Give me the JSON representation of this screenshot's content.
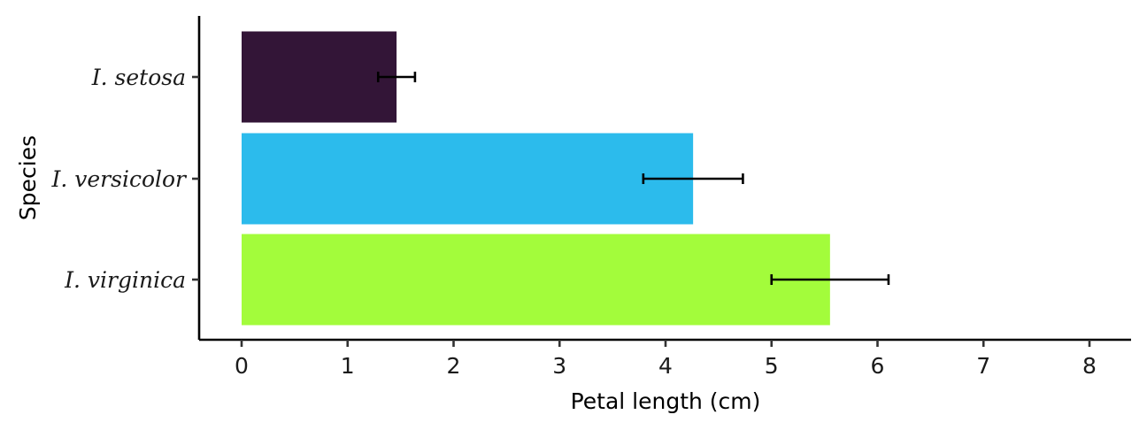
{
  "chart_data": {
    "type": "bar",
    "orientation": "horizontal",
    "categories": [
      "I. setosa",
      "I. versicolor",
      "I. virginica"
    ],
    "values": [
      1.462,
      4.26,
      5.552
    ],
    "errors": [
      0.174,
      0.47,
      0.552
    ],
    "colors": [
      "#331537",
      "#2cbbec",
      "#a3fc3b"
    ],
    "xlabel": "Petal length (cm)",
    "ylabel": "Species",
    "xlim": [
      -0.4,
      8.4
    ],
    "xticks": [
      0,
      1,
      2,
      3,
      4,
      5,
      6,
      7,
      8
    ],
    "grid": false,
    "legend": "none"
  }
}
